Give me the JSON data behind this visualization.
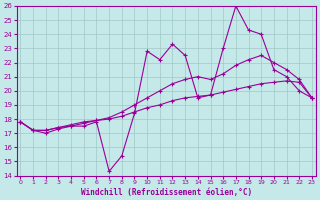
{
  "xlabel": "Windchill (Refroidissement éolien,°C)",
  "background_color": "#c5e8e8",
  "grid_color": "#a0c8c8",
  "line_color": "#990099",
  "xmin": 0,
  "xmax": 23,
  "ymin": 14,
  "ymax": 26,
  "hours": [
    0,
    1,
    2,
    3,
    4,
    5,
    6,
    7,
    8,
    9,
    10,
    11,
    12,
    13,
    14,
    15,
    16,
    17,
    18,
    19,
    20,
    21,
    22,
    23
  ],
  "line1": [
    17.8,
    17.2,
    17.0,
    17.3,
    17.5,
    17.5,
    17.8,
    14.3,
    15.4,
    18.4,
    22.8,
    22.2,
    23.3,
    22.5,
    19.5,
    19.7,
    23.0,
    26.0,
    24.3,
    24.0,
    21.5,
    21.0,
    20.0,
    19.5
  ],
  "line2": [
    17.8,
    17.2,
    17.2,
    17.4,
    17.6,
    17.8,
    17.9,
    18.1,
    18.5,
    19.0,
    19.5,
    20.0,
    20.5,
    20.8,
    21.0,
    20.8,
    21.2,
    21.8,
    22.2,
    22.5,
    22.0,
    21.5,
    20.8,
    19.5
  ],
  "line3": [
    17.8,
    17.2,
    17.2,
    17.4,
    17.5,
    17.7,
    17.9,
    18.0,
    18.2,
    18.5,
    18.8,
    19.0,
    19.3,
    19.5,
    19.6,
    19.7,
    19.9,
    20.1,
    20.3,
    20.5,
    20.6,
    20.7,
    20.6,
    19.5
  ]
}
